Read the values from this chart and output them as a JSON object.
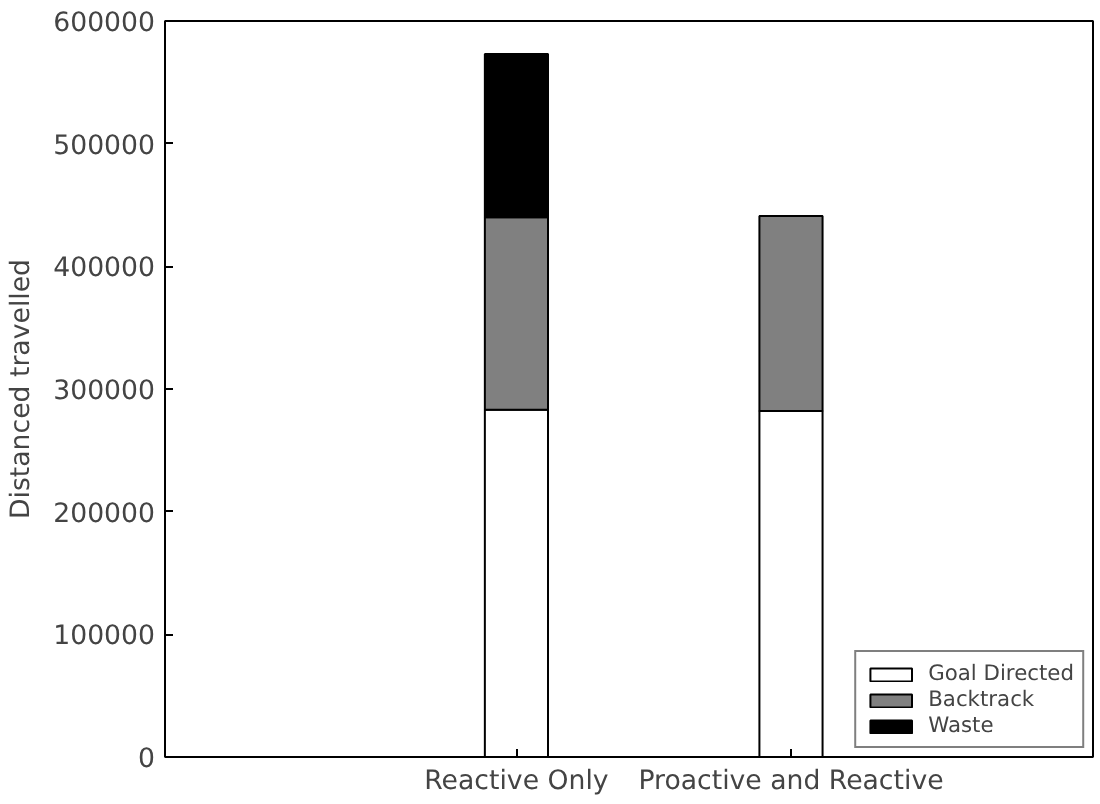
{
  "chart_data": {
    "type": "bar",
    "stacked": true,
    "ylabel": "Distanced travelled",
    "categories": [
      "Reactive Only",
      "Proactive and Reactive"
    ],
    "series": [
      {
        "name": "Goal Directed",
        "color": "#ffffff",
        "values": [
          283000,
          282000
        ]
      },
      {
        "name": "Backtrack",
        "color": "#808080",
        "values": [
          157000,
          159000
        ]
      },
      {
        "name": "Waste",
        "color": "#000000",
        "values": [
          133000,
          0
        ]
      }
    ],
    "ylim": [
      0,
      600000
    ],
    "yticks": [
      0,
      100000,
      200000,
      300000,
      400000,
      500000,
      600000
    ],
    "grid": false,
    "legend": "bottom right"
  }
}
